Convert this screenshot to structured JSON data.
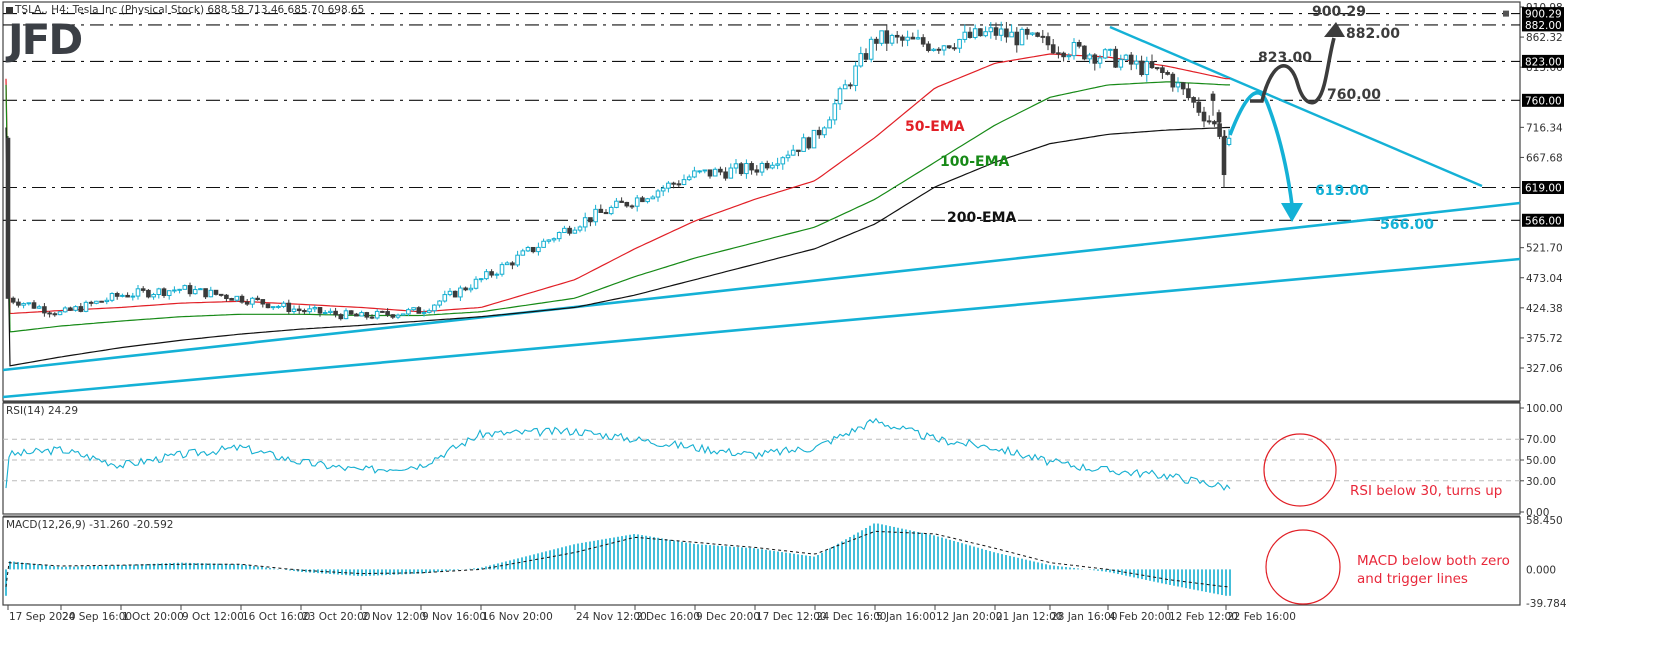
{
  "header": {
    "symbol_line": "TSLA., H4:  Tesla Inc (Physical Stock)  688.58 713.46 685.70 698.65",
    "logo_text": "JFD"
  },
  "colors": {
    "bull": "#15afd1",
    "bear": "#3a3a3a",
    "ema50": "#e11f26",
    "ema100": "#178a17",
    "ema200": "#111111",
    "trend": "#14b1d6",
    "scenario_up": "#3c3c3c",
    "annotation_red": "#e8283a",
    "rsi": "#15afd1",
    "macd_hist": "#15afd1",
    "grid_dash": "#bbbbbb",
    "frame": "#444444"
  },
  "price_axis": {
    "ticks": [
      "910.98",
      "862.32",
      "813.66",
      "716.34",
      "667.68",
      "521.70",
      "473.04",
      "424.38",
      "375.72",
      "327.06"
    ],
    "boxed_levels": [
      "900.29",
      "882.00",
      "823.00",
      "760.00",
      "619.00",
      "566.00"
    ]
  },
  "rsi_panel": {
    "title": "RSI(14) 24.29",
    "ticks": [
      "100.00",
      "70.00",
      "50.00",
      "30.00",
      "0.00"
    ],
    "annotation": "RSI below 30, turns up"
  },
  "macd_panel": {
    "title": "MACD(12,26,9) -31.260 -20.592",
    "ticks": [
      "58.450",
      "0.000",
      "-39.784"
    ],
    "annotation_line1": "MACD below both zero",
    "annotation_line2": "and trigger lines"
  },
  "time_axis": {
    "labels": [
      "17 Sep 2020",
      "24 Sep 16:00",
      "1 Oct 20:00",
      "9 Oct 12:00",
      "16 Oct 16:00",
      "23 Oct 20:00",
      "2 Nov 12:00",
      "9 Nov 16:00",
      "16 Nov 20:00",
      "24 Nov 12:00",
      "2 Dec 16:00",
      "9 Dec 20:00",
      "17 Dec 12:00",
      "24 Dec 16:00",
      "5 Jan 16:00",
      "12 Jan 20:00",
      "21 Jan 12:00",
      "28 Jan 16:00",
      "4 Feb 20:00",
      "12 Feb 12:00",
      "22 Feb 16:00"
    ]
  },
  "annotations": {
    "ema50_label": "50-EMA",
    "ema100_label": "100-EMA",
    "ema200_label": "200-EMA",
    "level_900": "900.29",
    "level_882": "882.00",
    "level_823": "823.00",
    "level_760": "760.00",
    "level_619": "619.00",
    "level_566": "566.00"
  },
  "chart_data": [
    {
      "type": "candlestick",
      "title": "TSLA., H4: Tesla Inc (Physical Stock)",
      "ohlc_last": {
        "open": 688.58,
        "high": 713.46,
        "low": 685.7,
        "close": 698.65
      },
      "ylim": [
        300,
        915
      ],
      "y_ticks": [
        327.06,
        375.72,
        424.38,
        473.04,
        521.7,
        667.68,
        716.34,
        813.66,
        862.32,
        910.98
      ],
      "horizontal_levels": [
        900.29,
        882.0,
        823.0,
        760.0,
        619.0,
        566.0
      ],
      "x_labels": [
        "17 Sep 2020",
        "24 Sep 16:00",
        "1 Oct 20:00",
        "9 Oct 12:00",
        "16 Oct 16:00",
        "23 Oct 20:00",
        "2 Nov 12:00",
        "9 Nov 16:00",
        "16 Nov 20:00",
        "24 Nov 12:00",
        "2 Dec 16:00",
        "9 Dec 20:00",
        "17 Dec 12:00",
        "24 Dec 16:00",
        "5 Jan 16:00",
        "12 Jan 20:00",
        "21 Jan 12:00",
        "28 Jan 16:00",
        "4 Feb 20:00",
        "12 Feb 12:00",
        "22 Feb 16:00"
      ],
      "approx_close_by_label": [
        440,
        415,
        445,
        455,
        440,
        420,
        410,
        420,
        470,
        560,
        600,
        640,
        650,
        700,
        860,
        850,
        870,
        850,
        830,
        800,
        698.65
      ],
      "series": [
        {
          "name": "50-EMA",
          "color": "#e11f26",
          "approx_values_by_label": [
            415,
            420,
            425,
            432,
            435,
            430,
            425,
            418,
            425,
            470,
            520,
            565,
            600,
            630,
            700,
            780,
            820,
            835,
            830,
            815,
            795
          ]
        },
        {
          "name": "100-EMA",
          "color": "#178a17",
          "approx_values_by_label": [
            385,
            395,
            403,
            410,
            414,
            414,
            412,
            412,
            418,
            440,
            475,
            505,
            530,
            555,
            600,
            660,
            720,
            765,
            785,
            790,
            785
          ]
        },
        {
          "name": "200-EMA",
          "color": "#111111",
          "approx_values_by_label": [
            330,
            345,
            360,
            372,
            382,
            390,
            396,
            403,
            410,
            425,
            445,
            470,
            495,
            520,
            560,
            620,
            660,
            690,
            705,
            712,
            716
          ]
        }
      ],
      "trendlines": [
        {
          "name": "downtrend",
          "from": {
            "x": "4 Feb 20:00",
            "y": 880
          },
          "to": {
            "x": "after 22 Feb",
            "y": 620
          }
        },
        {
          "name": "uptrend-upper",
          "from": {
            "x": "17 Sep 2020",
            "y": 312
          },
          "to": {
            "x": "end",
            "y": 590
          }
        },
        {
          "name": "uptrend-lower",
          "from": {
            "x": "17 Sep 2020",
            "y": 305
          },
          "to": {
            "x": "end",
            "y": 510
          }
        }
      ],
      "scenarios": [
        {
          "name": "bearish",
          "path": "rise to ~760 then fall to 566",
          "targets": [
            619.0,
            566.0
          ]
        },
        {
          "name": "bullish",
          "path": "760 -> 823 -> 760 -> 882",
          "targets": [
            823.0,
            760.0,
            882.0,
            900.29
          ]
        }
      ]
    },
    {
      "type": "line",
      "title": "RSI(14) 24.29",
      "ylim": [
        0,
        100
      ],
      "y_ticks": [
        0,
        30,
        50,
        70,
        100
      ],
      "reference_lines": [
        30,
        50,
        70
      ],
      "last_value": 24.29,
      "approx_values_by_label": [
        55,
        60,
        45,
        55,
        62,
        48,
        40,
        45,
        75,
        78,
        70,
        62,
        55,
        62,
        88,
        70,
        62,
        48,
        40,
        35,
        24.29
      ],
      "annotation": "RSI below 30, turns up"
    },
    {
      "type": "bar",
      "title": "MACD(12,26,9) -31.260 -20.592",
      "ylim": [
        -39.784,
        58.45
      ],
      "y_ticks": [
        -39.784,
        0,
        58.45
      ],
      "macd_last": -31.26,
      "signal_last": -20.592,
      "approx_hist_by_label": [
        10,
        3,
        5,
        8,
        6,
        -3,
        -8,
        -5,
        2,
        30,
        42,
        30,
        25,
        15,
        55,
        40,
        20,
        5,
        -3,
        -18,
        -31.26
      ],
      "approx_signal_by_label": [
        8,
        4,
        5,
        6,
        6,
        -1,
        -5,
        -4,
        0,
        20,
        38,
        32,
        26,
        18,
        45,
        42,
        25,
        8,
        0,
        -12,
        -20.59
      ],
      "annotation": "MACD below both zero and trigger lines"
    }
  ]
}
